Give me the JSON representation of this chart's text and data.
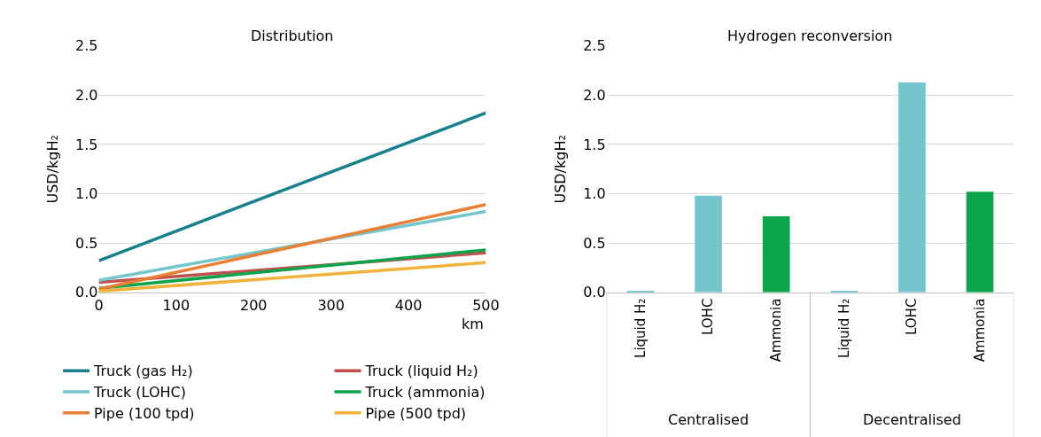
{
  "chart_data": [
    {
      "type": "line",
      "title": "Distribution",
      "xlabel": "km",
      "ylabel": "USD/kgH₂",
      "x": [
        0,
        500
      ],
      "xlim": [
        0,
        500
      ],
      "xticks": [
        0,
        100,
        200,
        300,
        400,
        500
      ],
      "ylim": [
        0,
        2.5
      ],
      "yticks": [
        {
          "value": 0,
          "label": "0.0"
        },
        {
          "value": 0.5,
          "label": "0.5"
        },
        {
          "value": 1,
          "label": "1.0"
        },
        {
          "value": 1.5,
          "label": "1.5"
        },
        {
          "value": 2,
          "label": "2.0"
        },
        {
          "value": 2.5,
          "label": "2.5"
        }
      ],
      "grid": "y",
      "legend": "bottom",
      "marker": "none",
      "line_style": "solid",
      "series": [
        {
          "name": "Truck (gas H₂)",
          "color": "#17808c",
          "values": [
            0.32,
            1.82
          ]
        },
        {
          "name": "Truck (liquid H₂)",
          "color": "#c0504d",
          "values": [
            0.1,
            0.4
          ]
        },
        {
          "name": "Truck (LOHC)",
          "color": "#74c6cc",
          "values": [
            0.12,
            0.82
          ]
        },
        {
          "name": "Truck (ammonia)",
          "color": "#0ca44a",
          "values": [
            0.04,
            0.43
          ]
        },
        {
          "name": "Pipe (100 tpd)",
          "color": "#e97f35",
          "values": [
            0.03,
            0.89
          ]
        },
        {
          "name": "Pipe (500 tpd)",
          "color": "#f3b23a",
          "values": [
            0.01,
            0.3
          ]
        }
      ]
    },
    {
      "type": "bar",
      "title": "Hydrogen reconversion",
      "ylabel": "USD/kgH₂",
      "categories": [
        "Liquid H₂",
        "LOHC",
        "Ammonia",
        "Liquid H₂",
        "LOHC",
        "Ammonia"
      ],
      "values": [
        0.01,
        0.98,
        0.77,
        0.01,
        2.13,
        1.02
      ],
      "colors": [
        "#74c6cc",
        "#74c6cc",
        "#0ca44a",
        "#74c6cc",
        "#74c6cc",
        "#0ca44a"
      ],
      "ylim": [
        0,
        2.5
      ],
      "yticks": [
        {
          "value": 0,
          "label": "0.0"
        },
        {
          "value": 0.5,
          "label": "0.5"
        },
        {
          "value": 1,
          "label": "1.0"
        },
        {
          "value": 1.5,
          "label": "1.5"
        },
        {
          "value": 2,
          "label": "2.0"
        },
        {
          "value": 2.5,
          "label": "2.5"
        }
      ],
      "grid": "y",
      "legend": false,
      "annotations": [
        "Centralised",
        "Decentralised"
      ]
    }
  ]
}
